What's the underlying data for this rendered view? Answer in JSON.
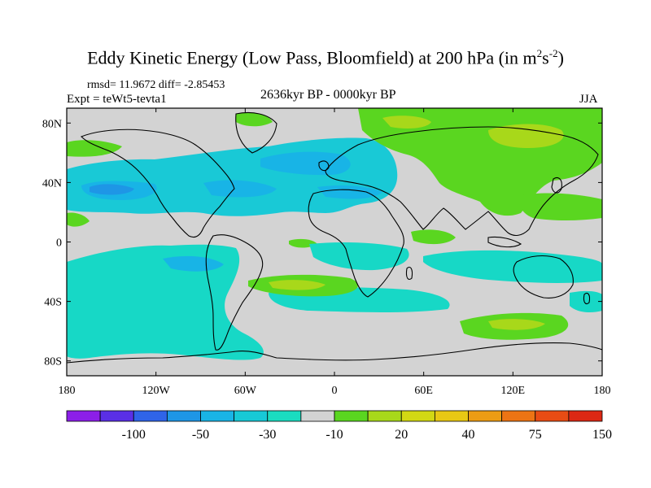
{
  "title": {
    "main": "Eddy Kinetic Energy (Low Pass, Bloomfield) at 200 hPa (in m",
    "exp1": "2",
    "mid": "s",
    "exp2": "-2",
    "end": ")"
  },
  "stats": "rmsd= 11.9672 diff= -2.85453",
  "expt": "Expt = teWt5-tevta1",
  "period": "2636kyr BP - 0000kyr BP",
  "season": "JJA",
  "map": {
    "lat_labels": [
      "80N",
      "40N",
      "0",
      "40S",
      "80S"
    ],
    "lat_values": [
      80,
      40,
      0,
      -40,
      -80
    ],
    "lon_labels": [
      "180",
      "120W",
      "60W",
      "0",
      "60E",
      "120E",
      "180"
    ],
    "lon_values": [
      -180,
      -120,
      -60,
      0,
      60,
      120,
      180
    ],
    "lat_range": [
      -90,
      90
    ],
    "lon_range": [
      -180,
      180
    ],
    "background_color": "#d3d3d3",
    "coastline_color": "#000000"
  },
  "colorbar": {
    "colors": [
      "#8c1fe8",
      "#5a2fe6",
      "#2f64e8",
      "#1e96e6",
      "#19b4e6",
      "#17c9d6",
      "#1adcc0",
      "#d3d3d3",
      "#5ad620",
      "#a8d81a",
      "#d2d814",
      "#e8c814",
      "#ec9c14",
      "#ec7414",
      "#e84c14",
      "#dc2814"
    ],
    "labels": [
      "-100",
      "-50",
      "-30",
      "-10",
      "20",
      "40",
      "75",
      "150"
    ]
  },
  "field_colors": {
    "light_blue": "#19c9d6",
    "cyan": "#17d8c6",
    "mid_blue": "#18b4e6",
    "deep_blue": "#1e96e6",
    "green": "#5ad620",
    "lime": "#a8d81a"
  }
}
